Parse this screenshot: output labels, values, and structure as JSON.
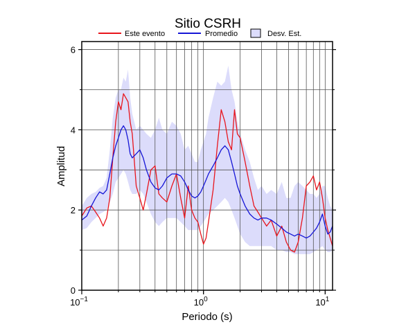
{
  "chart_data": {
    "type": "line",
    "title": "Sitio CSRH",
    "xlabel": "Periodo (s)",
    "ylabel": "Amplitud",
    "xscale": "log",
    "xlim": [
      0.1,
      11.5
    ],
    "ylim": [
      0,
      6.2
    ],
    "x_tick_labels": [
      {
        "value": 0.1,
        "base": "10",
        "exp": "−1"
      },
      {
        "value": 1,
        "base": "10",
        "exp": "0"
      },
      {
        "value": 10,
        "base": "10",
        "exp": "1"
      }
    ],
    "y_ticks": [
      0,
      2,
      4,
      6
    ],
    "y_minor": [
      1,
      3,
      5
    ],
    "grid": true,
    "legend_position": "top-center",
    "legend": [
      {
        "label": "Este evento",
        "kind": "line",
        "color": "#e8141b"
      },
      {
        "label": "Promedio",
        "kind": "line",
        "color": "#1515d6"
      },
      {
        "label": "Desv. Est.",
        "kind": "patch",
        "color": "#dcdcfb"
      }
    ],
    "series": [
      {
        "name": "Este evento",
        "color": "#e8141b",
        "x": [
          0.1,
          0.11,
          0.12,
          0.13,
          0.14,
          0.15,
          0.16,
          0.17,
          0.18,
          0.19,
          0.2,
          0.21,
          0.22,
          0.23,
          0.24,
          0.25,
          0.26,
          0.28,
          0.3,
          0.32,
          0.34,
          0.37,
          0.4,
          0.43,
          0.46,
          0.5,
          0.55,
          0.6,
          0.65,
          0.7,
          0.75,
          0.8,
          0.85,
          0.9,
          0.95,
          1.0,
          1.05,
          1.1,
          1.2,
          1.3,
          1.4,
          1.5,
          1.6,
          1.7,
          1.8,
          1.9,
          2.0,
          2.2,
          2.4,
          2.6,
          2.8,
          3.0,
          3.3,
          3.6,
          4.0,
          4.4,
          4.8,
          5.2,
          5.6,
          6.0,
          6.5,
          7.0,
          7.5,
          8.0,
          8.5,
          9.0,
          9.5,
          10.0,
          10.5,
          11.0,
          11.5
        ],
        "values": [
          1.85,
          2.05,
          2.1,
          1.95,
          1.8,
          1.6,
          1.8,
          2.3,
          3.3,
          4.2,
          4.7,
          4.5,
          4.9,
          4.8,
          4.7,
          4.2,
          3.9,
          2.6,
          2.3,
          2.0,
          2.4,
          3.0,
          3.1,
          2.4,
          2.3,
          2.2,
          2.6,
          2.9,
          2.3,
          1.8,
          2.6,
          2.0,
          1.8,
          1.7,
          1.4,
          1.15,
          1.3,
          1.7,
          2.5,
          3.6,
          4.5,
          4.2,
          3.7,
          3.5,
          4.5,
          3.9,
          3.8,
          3.2,
          2.6,
          2.1,
          1.95,
          1.8,
          1.6,
          1.75,
          1.35,
          1.6,
          1.2,
          1.0,
          0.95,
          1.2,
          1.8,
          2.6,
          2.7,
          2.85,
          2.5,
          2.7,
          2.3,
          1.8,
          1.5,
          1.3,
          1.1
        ]
      },
      {
        "name": "Promedio",
        "color": "#1515d6",
        "x": [
          0.1,
          0.11,
          0.12,
          0.13,
          0.14,
          0.15,
          0.16,
          0.17,
          0.18,
          0.19,
          0.2,
          0.21,
          0.22,
          0.23,
          0.24,
          0.25,
          0.26,
          0.28,
          0.3,
          0.32,
          0.34,
          0.37,
          0.4,
          0.43,
          0.46,
          0.5,
          0.55,
          0.6,
          0.65,
          0.7,
          0.75,
          0.8,
          0.85,
          0.9,
          0.95,
          1.0,
          1.05,
          1.1,
          1.2,
          1.3,
          1.4,
          1.5,
          1.6,
          1.7,
          1.8,
          1.9,
          2.0,
          2.2,
          2.4,
          2.6,
          2.8,
          3.0,
          3.3,
          3.6,
          4.0,
          4.4,
          4.8,
          5.2,
          5.6,
          6.0,
          6.5,
          7.0,
          7.5,
          8.0,
          8.5,
          9.0,
          9.5,
          10.0,
          10.5,
          11.0,
          11.5
        ],
        "values": [
          1.75,
          1.85,
          2.1,
          2.3,
          2.45,
          2.4,
          2.5,
          2.9,
          3.3,
          3.6,
          3.8,
          4.0,
          4.1,
          4.0,
          3.75,
          3.4,
          3.3,
          3.4,
          3.5,
          3.3,
          3.0,
          2.7,
          2.55,
          2.5,
          2.6,
          2.8,
          2.9,
          2.9,
          2.85,
          2.7,
          2.5,
          2.35,
          2.3,
          2.35,
          2.45,
          2.6,
          2.75,
          2.9,
          3.1,
          3.3,
          3.5,
          3.6,
          3.5,
          3.2,
          2.9,
          2.6,
          2.4,
          2.1,
          1.9,
          1.8,
          1.75,
          1.8,
          1.8,
          1.75,
          1.65,
          1.55,
          1.45,
          1.4,
          1.35,
          1.4,
          1.35,
          1.3,
          1.35,
          1.45,
          1.55,
          1.7,
          1.9,
          1.6,
          1.4,
          1.45,
          1.6
        ]
      }
    ],
    "band": {
      "name": "Desv. Est.",
      "color": "#dcdcfb",
      "x": [
        0.1,
        0.11,
        0.12,
        0.13,
        0.14,
        0.15,
        0.16,
        0.17,
        0.18,
        0.19,
        0.2,
        0.21,
        0.22,
        0.23,
        0.24,
        0.25,
        0.26,
        0.28,
        0.3,
        0.32,
        0.34,
        0.37,
        0.4,
        0.43,
        0.46,
        0.5,
        0.55,
        0.6,
        0.65,
        0.7,
        0.75,
        0.8,
        0.85,
        0.9,
        0.95,
        1.0,
        1.05,
        1.1,
        1.2,
        1.3,
        1.4,
        1.5,
        1.6,
        1.7,
        1.8,
        1.9,
        2.0,
        2.2,
        2.4,
        2.6,
        2.8,
        3.0,
        3.3,
        3.6,
        4.0,
        4.4,
        4.8,
        5.2,
        5.6,
        6.0,
        6.5,
        7.0,
        7.5,
        8.0,
        8.5,
        9.0,
        9.5,
        10.0,
        10.5,
        11.0,
        11.5
      ],
      "upper": [
        2.1,
        2.3,
        2.4,
        2.45,
        2.55,
        2.6,
        2.8,
        3.5,
        4.3,
        4.8,
        5.0,
        5.0,
        5.3,
        5.2,
        5.5,
        4.8,
        4.4,
        4.0,
        4.1,
        4.0,
        3.9,
        3.8,
        4.0,
        4.3,
        4.0,
        3.9,
        4.2,
        4.1,
        3.9,
        3.5,
        3.6,
        3.4,
        3.2,
        3.2,
        3.5,
        3.7,
        3.9,
        4.3,
        4.8,
        5.2,
        5.1,
        5.2,
        5.6,
        5.0,
        4.7,
        4.2,
        3.9,
        3.5,
        3.2,
        2.8,
        2.5,
        2.6,
        2.4,
        2.5,
        2.4,
        2.7,
        2.3,
        2.3,
        2.6,
        2.7,
        2.6,
        2.5,
        2.4,
        2.4,
        2.3,
        2.4,
        2.6,
        2.6,
        2.3,
        2.1,
        2.0
      ],
      "lower": [
        1.5,
        1.55,
        1.7,
        1.8,
        1.9,
        1.95,
        2.0,
        2.2,
        2.4,
        2.7,
        2.8,
        2.9,
        3.0,
        2.9,
        2.7,
        2.5,
        2.4,
        2.4,
        2.5,
        2.4,
        2.2,
        1.9,
        1.7,
        1.6,
        1.7,
        1.8,
        1.8,
        1.8,
        1.7,
        1.6,
        1.5,
        1.5,
        1.5,
        1.5,
        1.6,
        1.7,
        1.8,
        1.9,
        2.0,
        2.1,
        2.2,
        2.3,
        2.2,
        2.0,
        1.8,
        1.6,
        1.4,
        1.2,
        1.1,
        1.1,
        1.1,
        1.1,
        1.1,
        1.1,
        1.0,
        1.0,
        0.95,
        0.95,
        0.9,
        0.9,
        0.9,
        0.9,
        0.9,
        0.95,
        1.0,
        1.05,
        1.1,
        1.0,
        0.95,
        0.95,
        1.0
      ]
    }
  }
}
